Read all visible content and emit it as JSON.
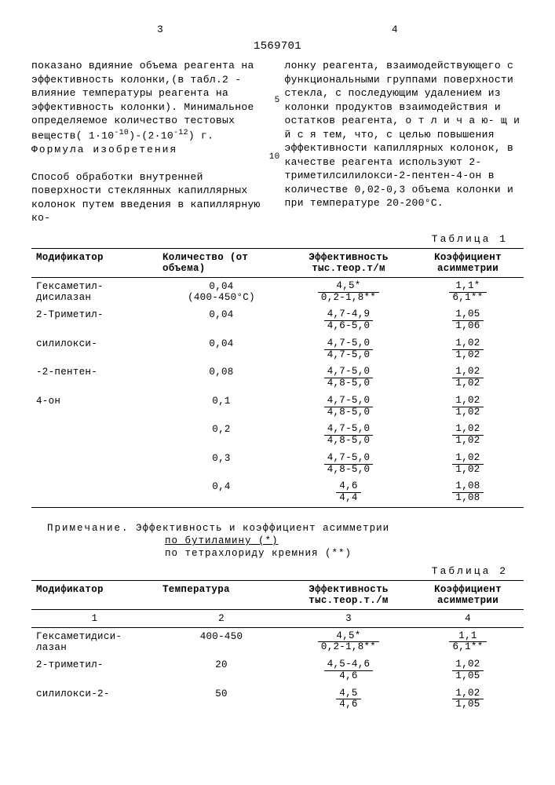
{
  "patent_number": "1569701",
  "page_left": "3",
  "page_right": "4",
  "col_left": {
    "p1": "показано вдияние объема реагента на эффективность колонки,(в табл.2 - влияние температуры реагента на эффективность колонки).  Минимальное определяемое количество тестовых веществ( 1·10",
    "exp1": "-10",
    "p1b": ")-(2·10",
    "exp2": "-12",
    "p1c": ") г.",
    "formula": "Формула изобретения",
    "p2": "Способ обработки внутренней поверхности стеклянных  капиллярных колонок путем введения в капиллярную ко-",
    "marker5": "5",
    "marker10": "10"
  },
  "col_right": {
    "p1": "лонку реагента, взаимодействующего с функциональными группами поверхности стекла, с последующим удалением из колонки продуктов взаимодействия и остатков реагента, о т л и ч а ю- щ и й с я  тем, что, с целью повышения эффективности капиллярных колонок, в качестве реагента используют 2-триметилсилилокси-2-пентен-4-он в количестве 0,02-0,3 объема колонки и при температуре 20-200°С."
  },
  "table1": {
    "label": "Таблица 1",
    "headers": [
      "Модификатор",
      "Количество (от объема)",
      "Эффективность тыс.теор.т/м",
      "Коэффициент асимметрии"
    ],
    "rows": [
      {
        "mod": "Гексаметил-\nдисилазан",
        "qty": "0,04\n(400-450°С)",
        "eff_n": "4,5*",
        "eff_d": "0,2-1,8**",
        "k_n": "1,1*",
        "k_d": "6,1**"
      },
      {
        "mod": "2-Триметил-",
        "qty": "0,04",
        "eff_n": "4,7-4,9",
        "eff_d": "4,6-5,0",
        "k_n": "1,05",
        "k_d": "1,06"
      },
      {
        "mod": "силилокси-",
        "qty": "0,04",
        "eff_n": "4,7-5,0",
        "eff_d": "4,7-5,0",
        "k_n": "1,02",
        "k_d": "1,02"
      },
      {
        "mod": "-2-пентен-",
        "qty": "0,08",
        "eff_n": "4,7-5,0",
        "eff_d": "4,8-5,0",
        "k_n": "1,02",
        "k_d": "1,02"
      },
      {
        "mod": "4-он",
        "qty": "0,1",
        "eff_n": "4,7-5,0",
        "eff_d": "4,8-5,0",
        "k_n": "1,02",
        "k_d": "1,02"
      },
      {
        "mod": "",
        "qty": "0,2",
        "eff_n": "4,7-5,0",
        "eff_d": "4,8-5,0",
        "k_n": "1,02",
        "k_d": "1,02"
      },
      {
        "mod": "",
        "qty": "0,3",
        "eff_n": "4,7-5,0",
        "eff_d": "4,8-5,0",
        "k_n": "1,02",
        "k_d": "1,02"
      },
      {
        "mod": "",
        "qty": "0,4",
        "eff_n": "4,6",
        "eff_d": "4,4",
        "k_n": "1,08",
        "k_d": "1,08"
      }
    ]
  },
  "note": {
    "lead": "Примечание.",
    "text": "Эффективность и коэффициент асимметрии",
    "line1": "по бутиламину  (*)",
    "line2": "по тетрахлориду кремния (**)"
  },
  "table2": {
    "label": "Таблица 2",
    "headers": [
      "Модификатор",
      "Температура",
      "Эффективность тыс.теор.т./м",
      "Коэффициент асимметрии"
    ],
    "subhead": [
      "1",
      "2",
      "3",
      "4"
    ],
    "rows": [
      {
        "mod": "Гексаметидиси-\nлазан",
        "t": "400-450",
        "eff_n": "4,5*",
        "eff_d": "0,2-1,8**",
        "k_n": "1,1",
        "k_d": "6,1**"
      },
      {
        "mod": "2-триметил-",
        "t": "20",
        "eff_n": "4,5-4,6",
        "eff_d": "4,6",
        "k_n": "1,02",
        "k_d": "1,05"
      },
      {
        "mod": "силилокси-2-",
        "t": "50",
        "eff_n": "4,5",
        "eff_d": "4,6",
        "k_n": "1,02",
        "k_d": "1,05"
      }
    ]
  }
}
